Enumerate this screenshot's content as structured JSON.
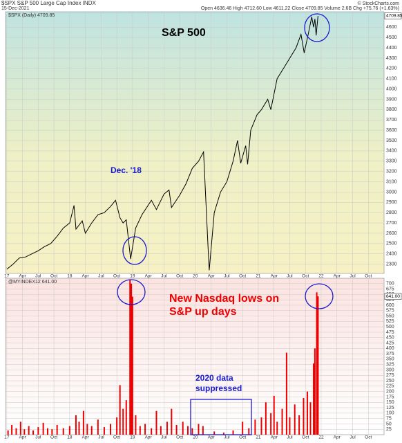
{
  "header": {
    "symbol": "$SPX S&P 500 Large Cap Index INDX",
    "date": "15-Dec-2021",
    "quote": "Open 4636.46 High 4712.60 Low 4611.22 Close 4709.85 Volume 2.6B Chg +75.76 (+1.63%)",
    "credit": "© StockCharts.com"
  },
  "chart_data": [
    {
      "type": "line",
      "legend": "$SPX (Daily) 4709.85",
      "title": "S&P 500",
      "annotation": "Dec. '18",
      "last_label": "4709.85",
      "color": "#000000",
      "x": [
        2017.0,
        2017.1,
        2017.2,
        2017.3,
        2017.4,
        2017.5,
        2017.6,
        2017.7,
        2017.8,
        2017.9,
        2018.0,
        2018.07,
        2018.1,
        2018.2,
        2018.25,
        2018.35,
        2018.45,
        2018.55,
        2018.65,
        2018.73,
        2018.8,
        2018.85,
        2018.9,
        2018.97,
        2019.05,
        2019.15,
        2019.3,
        2019.38,
        2019.5,
        2019.58,
        2019.62,
        2019.75,
        2019.85,
        2019.95,
        2020.05,
        2020.13,
        2020.2,
        2020.22,
        2020.3,
        2020.4,
        2020.5,
        2020.6,
        2020.67,
        2020.72,
        2020.8,
        2020.83,
        2020.88,
        2020.98,
        2021.05,
        2021.15,
        2021.2,
        2021.3,
        2021.4,
        2021.5,
        2021.6,
        2021.68,
        2021.73,
        2021.8,
        2021.85,
        2021.88,
        2021.9,
        2021.92,
        2021.95
      ],
      "values": [
        2250,
        2300,
        2360,
        2370,
        2400,
        2430,
        2470,
        2500,
        2570,
        2650,
        2700,
        2870,
        2640,
        2720,
        2600,
        2700,
        2780,
        2800,
        2860,
        2920,
        2750,
        2700,
        2730,
        2350,
        2650,
        2780,
        2920,
        2830,
        2980,
        3020,
        2850,
        2970,
        3080,
        3230,
        3300,
        3390,
        2480,
        2240,
        2800,
        3000,
        3100,
        3300,
        3500,
        3280,
        3450,
        3270,
        3600,
        3750,
        3800,
        3900,
        3800,
        4100,
        4200,
        4300,
        4400,
        4530,
        4350,
        4550,
        4700,
        4600,
        4680,
        4520,
        4709.85
      ],
      "xlim": [
        2016.98,
        2023.0
      ],
      "ylim": [
        2210,
        4750
      ],
      "yticks": [
        2300,
        2400,
        2500,
        2600,
        2700,
        2800,
        2900,
        3000,
        3100,
        3200,
        3300,
        3400,
        3500,
        3600,
        3700,
        3800,
        3900,
        4000,
        4100,
        4200,
        4300,
        4400,
        4500,
        4600
      ],
      "xticks": [
        {
          "value": 2017,
          "label": "17"
        },
        {
          "value": 2017.25,
          "label": "Apr"
        },
        {
          "value": 2017.5,
          "label": "Jul"
        },
        {
          "value": 2017.75,
          "label": "Oct"
        },
        {
          "value": 2018,
          "label": "18"
        },
        {
          "value": 2018.25,
          "label": "Apr"
        },
        {
          "value": 2018.5,
          "label": "Jul"
        },
        {
          "value": 2018.75,
          "label": "Oct"
        },
        {
          "value": 2019,
          "label": "19"
        },
        {
          "value": 2019.25,
          "label": "Apr"
        },
        {
          "value": 2019.5,
          "label": "Jul"
        },
        {
          "value": 2019.75,
          "label": "Oct"
        },
        {
          "value": 2020,
          "label": "20"
        },
        {
          "value": 2020.25,
          "label": "Apr"
        },
        {
          "value": 2020.5,
          "label": "Jul"
        },
        {
          "value": 2020.75,
          "label": "Oct"
        },
        {
          "value": 2021,
          "label": "21"
        },
        {
          "value": 2021.25,
          "label": "Apr"
        },
        {
          "value": 2021.5,
          "label": "Jul"
        },
        {
          "value": 2021.75,
          "label": "Oct"
        },
        {
          "value": 2022,
          "label": "22"
        },
        {
          "value": 2022.25,
          "label": "Apr"
        },
        {
          "value": 2022.5,
          "label": "Jul"
        },
        {
          "value": 2022.75,
          "label": "Oct"
        }
      ],
      "grid": true
    },
    {
      "type": "bar",
      "legend": "@MYINDEX12 641.00",
      "annotation_lines": [
        "New Nasdaq lows on",
        "S&P up days"
      ],
      "note_lines": [
        "2020 data",
        "suppressed"
      ],
      "last_label": "641.00",
      "color": "#ee0000",
      "x": [
        2017.02,
        2017.08,
        2017.15,
        2017.22,
        2017.28,
        2017.35,
        2017.42,
        2017.5,
        2017.58,
        2017.65,
        2017.72,
        2017.8,
        2017.9,
        2018.0,
        2018.1,
        2018.15,
        2018.22,
        2018.28,
        2018.35,
        2018.45,
        2018.55,
        2018.65,
        2018.75,
        2018.8,
        2018.85,
        2018.9,
        2018.96,
        2018.98,
        2019.0,
        2019.05,
        2019.12,
        2019.2,
        2019.3,
        2019.38,
        2019.45,
        2019.55,
        2019.62,
        2019.7,
        2019.8,
        2019.88,
        2019.95,
        2020.05,
        2020.12,
        2020.3,
        2020.45,
        2020.6,
        2020.75,
        2020.85,
        2020.95,
        2021.05,
        2021.12,
        2021.2,
        2021.25,
        2021.3,
        2021.38,
        2021.45,
        2021.5,
        2021.58,
        2021.65,
        2021.72,
        2021.78,
        2021.83,
        2021.88,
        2021.9,
        2021.93,
        2021.95
      ],
      "values": [
        20,
        45,
        30,
        60,
        25,
        40,
        20,
        35,
        55,
        30,
        25,
        45,
        30,
        40,
        90,
        60,
        110,
        50,
        40,
        70,
        35,
        50,
        80,
        230,
        120,
        160,
        720,
        700,
        640,
        90,
        40,
        50,
        30,
        110,
        40,
        60,
        120,
        45,
        60,
        40,
        30,
        50,
        40,
        15,
        10,
        20,
        60,
        30,
        70,
        80,
        150,
        100,
        180,
        60,
        120,
        380,
        80,
        140,
        90,
        170,
        200,
        150,
        330,
        400,
        660,
        641
      ],
      "xlim": [
        2016.98,
        2023.0
      ],
      "ylim": [
        0,
        725
      ],
      "yticks": [
        25,
        50,
        75,
        100,
        125,
        150,
        175,
        200,
        225,
        250,
        275,
        300,
        325,
        350,
        375,
        400,
        425,
        450,
        475,
        500,
        525,
        550,
        575,
        600,
        625,
        650,
        675,
        700
      ],
      "xticks": [
        {
          "value": 2017,
          "label": "17"
        },
        {
          "value": 2017.25,
          "label": "Apr"
        },
        {
          "value": 2017.5,
          "label": "Jul"
        },
        {
          "value": 2017.75,
          "label": "Oct"
        },
        {
          "value": 2018,
          "label": "18"
        },
        {
          "value": 2018.25,
          "label": "Apr"
        },
        {
          "value": 2018.5,
          "label": "Jul"
        },
        {
          "value": 2018.75,
          "label": "Oct"
        },
        {
          "value": 2019,
          "label": "19"
        },
        {
          "value": 2019.25,
          "label": "Apr"
        },
        {
          "value": 2019.5,
          "label": "Jul"
        },
        {
          "value": 2019.75,
          "label": "Oct"
        },
        {
          "value": 2020,
          "label": "20"
        },
        {
          "value": 2020.25,
          "label": "Apr"
        },
        {
          "value": 2020.5,
          "label": "Jul"
        },
        {
          "value": 2020.75,
          "label": "Oct"
        },
        {
          "value": 2021,
          "label": "21"
        },
        {
          "value": 2021.25,
          "label": "Apr"
        },
        {
          "value": 2021.5,
          "label": "Jul"
        },
        {
          "value": 2021.75,
          "label": "Oct"
        },
        {
          "value": 2022,
          "label": "22"
        },
        {
          "value": 2022.25,
          "label": "Apr"
        },
        {
          "value": 2022.5,
          "label": "Jul"
        },
        {
          "value": 2022.75,
          "label": "Oct"
        }
      ],
      "grid": true
    }
  ]
}
